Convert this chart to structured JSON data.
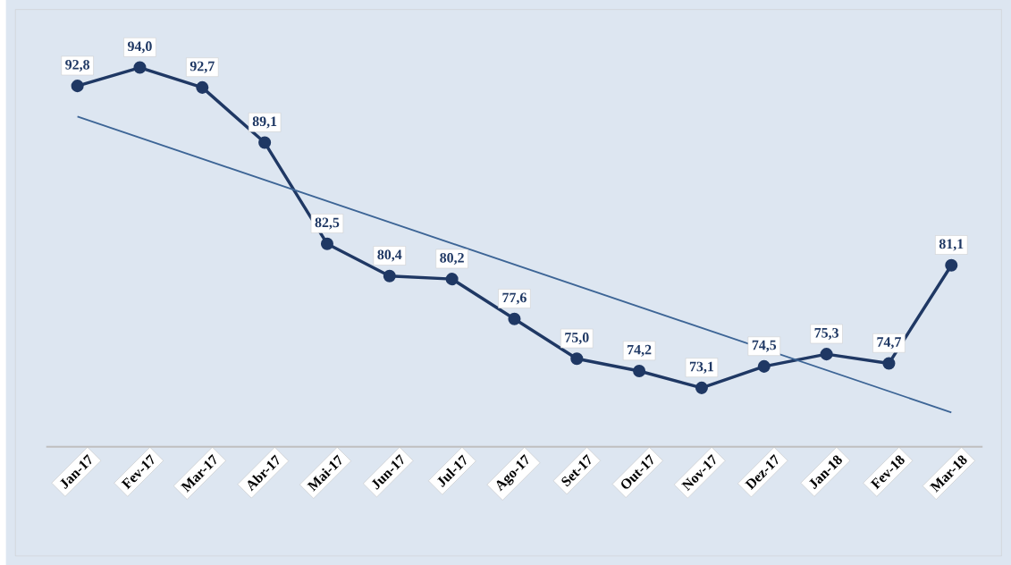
{
  "chart_data": {
    "type": "line",
    "categories": [
      "Jan-17",
      "Fev-17",
      "Mar-17",
      "Abr-17",
      "Mai-17",
      "Jun-17",
      "Jul-17",
      "Ago-17",
      "Set-17",
      "Out-17",
      "Nov-17",
      "Dez-17",
      "Jan-18",
      "Fev-18",
      "Mar-18"
    ],
    "series": [
      {
        "color": "#1f3864",
        "marker": "circle",
        "line_style": "solid",
        "values": [
          92.8,
          94.0,
          92.7,
          89.1,
          82.5,
          80.4,
          80.2,
          77.6,
          75.0,
          74.2,
          73.1,
          74.5,
          75.3,
          74.7,
          81.1
        ],
        "value_labels": [
          "92,8",
          "94,0",
          "92,7",
          "89,1",
          "82,5",
          "80,4",
          "80,2",
          "77,6",
          "75,0",
          "74,2",
          "73,1",
          "74,5",
          "75,3",
          "74,7",
          "81,1"
        ]
      },
      {
        "type": "line",
        "color": "#3d6596",
        "marker": "none",
        "line_style": "solid",
        "x": [
          "Jan-17",
          "Mar-18"
        ],
        "values": [
          90.8,
          71.5
        ]
      }
    ],
    "tick_labels": "x"
  }
}
